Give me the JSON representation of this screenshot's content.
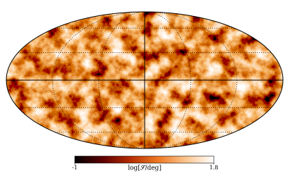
{
  "chart_data": {
    "type": "mollweide",
    "colorbar": {
      "label": "log[𝒮/deg]",
      "lim": [
        -1,
        1.8
      ],
      "ticks": [
        -1,
        1.8
      ],
      "colors": [
        "#000000",
        "#5c0000",
        "#b52c00",
        "#ee7a22",
        "#fcc690",
        "#ffffff"
      ]
    }
  }
}
